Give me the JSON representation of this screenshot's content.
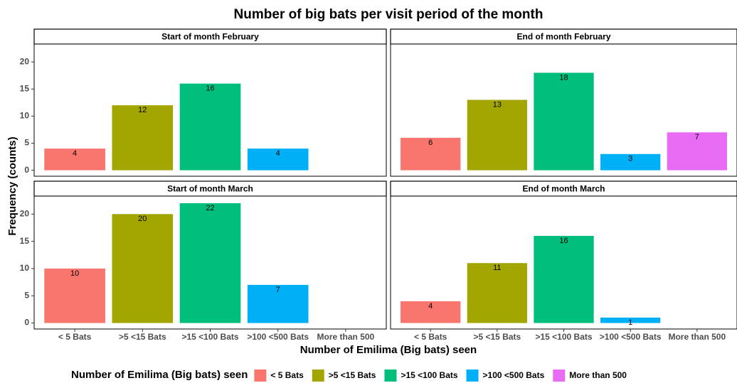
{
  "chart_data": {
    "type": "bar",
    "title": "Number of big bats per visit period of the month",
    "x_label": "Number of Emilima (Big bats) seen",
    "y_label": "Frequency (counts)",
    "legend_title": "Number of Emilima (Big bats) seen",
    "legend_position": "bottom",
    "categories": [
      "< 5 Bats",
      ">5 <15 Bats",
      ">15 <100 Bats",
      ">100 <500 Bats",
      "More than 500"
    ],
    "colors": [
      "#F8766D",
      "#A3A500",
      "#00BF7D",
      "#00B0F6",
      "#E76BF3"
    ],
    "ylim": [
      -1.1,
      23.3
    ],
    "yticks": [
      0,
      5,
      10,
      15,
      20
    ],
    "panels": [
      {
        "title": "Start of month February",
        "values": [
          4,
          12,
          16,
          4,
          null
        ]
      },
      {
        "title": "End of month February",
        "values": [
          6,
          13,
          18,
          3,
          7
        ]
      },
      {
        "title": "Start of month March",
        "values": [
          10,
          20,
          22,
          7,
          null
        ]
      },
      {
        "title": "End of month March",
        "values": [
          4,
          11,
          16,
          1,
          null
        ]
      }
    ]
  }
}
